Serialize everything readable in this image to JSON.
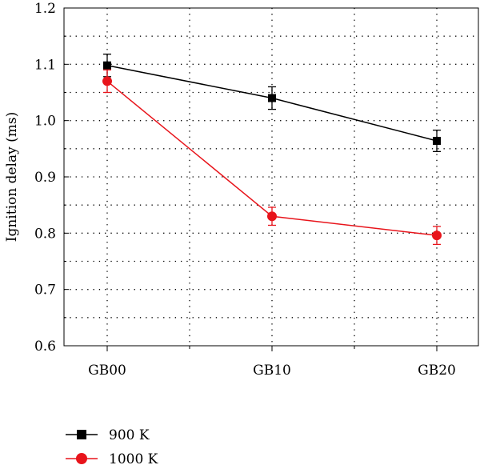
{
  "chart_data": {
    "type": "line",
    "categories": [
      "GB00",
      "GB10",
      "GB20"
    ],
    "ylabel": "Ignition delay (ms)",
    "xlabel": "",
    "title": "",
    "ylim": [
      0.6,
      1.2
    ],
    "yticks": [
      "0.6",
      "0.7",
      "0.8",
      "0.9",
      "1.0",
      "1.1",
      "1.2"
    ],
    "grid": true,
    "legend_position": "bottom-left",
    "series": [
      {
        "name": "900 K",
        "color": "#000000",
        "marker": "square",
        "values": [
          1.098,
          1.04,
          0.964
        ],
        "errors": [
          0.02,
          0.02,
          0.019
        ]
      },
      {
        "name": "1000 K",
        "color": "#e8141b",
        "marker": "circle",
        "values": [
          1.07,
          0.83,
          0.796
        ],
        "errors": [
          0.02,
          0.016,
          0.016
        ]
      }
    ]
  }
}
